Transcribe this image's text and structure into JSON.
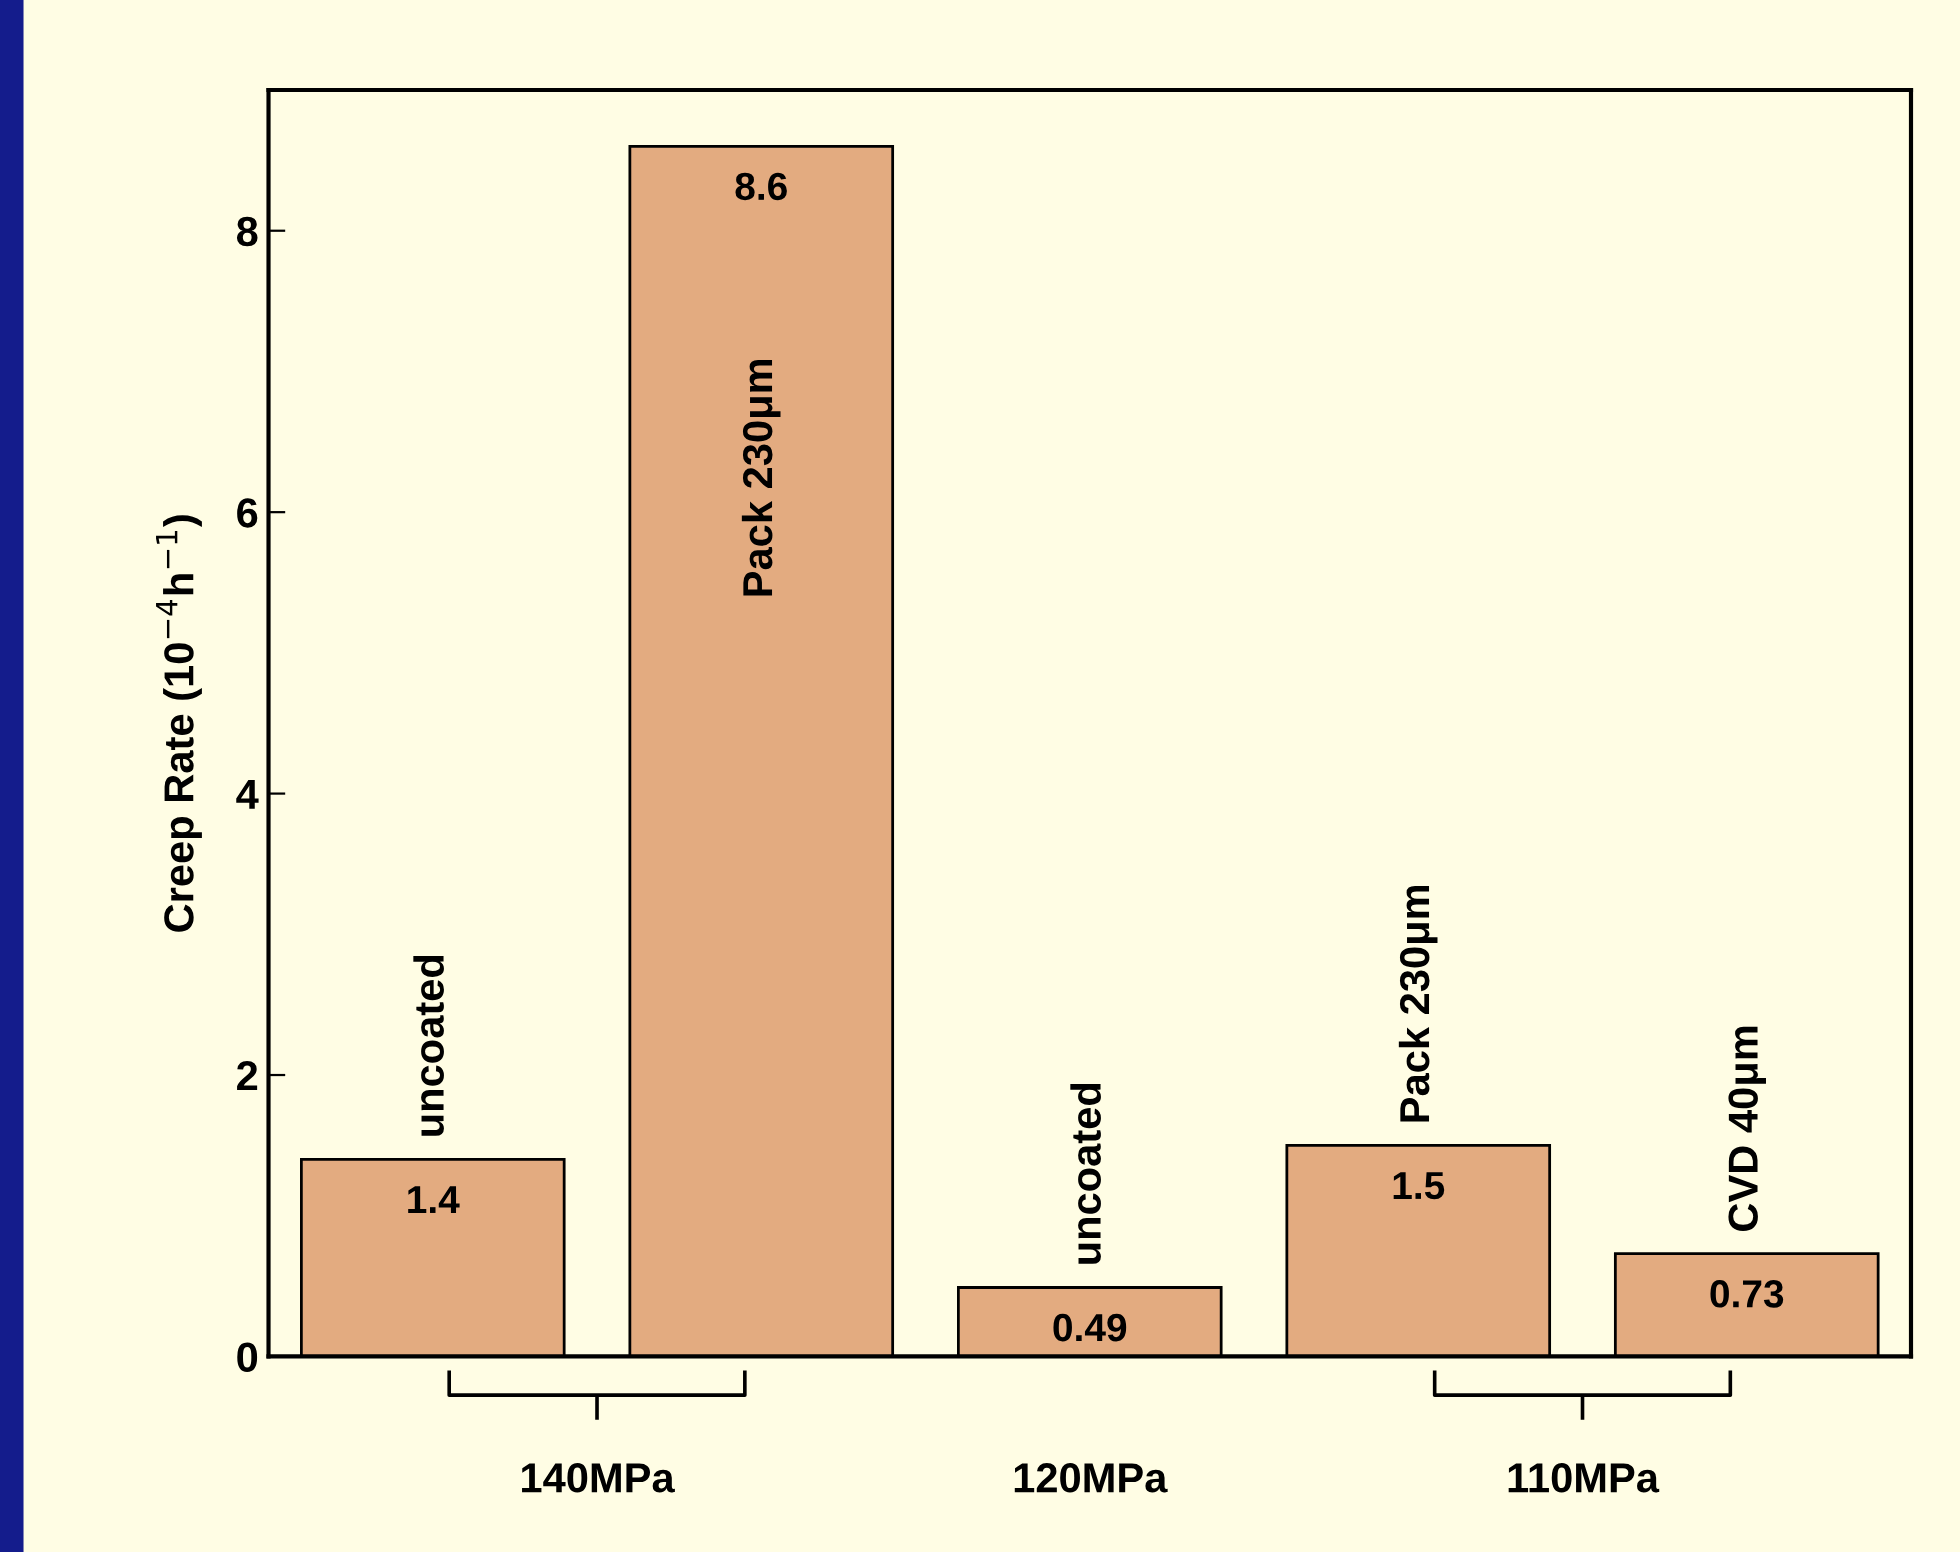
{
  "chart_data": {
    "type": "bar",
    "ylabel": "Creep Rate (10$^{−4}$h$^{−1}$)",
    "categories": [
      "uncoated",
      "Pack 230μm",
      "uncoated",
      "Pack 230μm",
      "CVD 40μm"
    ],
    "values": [
      1.4,
      8.6,
      0.49,
      1.5,
      0.73
    ],
    "color": "#e3ab80",
    "data_labels": true,
    "ylim": [
      0,
      9
    ],
    "yticks": [
      0,
      2,
      4,
      6,
      8
    ],
    "grid": false,
    "annotations": [
      "140MPa",
      "120MPa",
      "110MPa"
    ]
  }
}
